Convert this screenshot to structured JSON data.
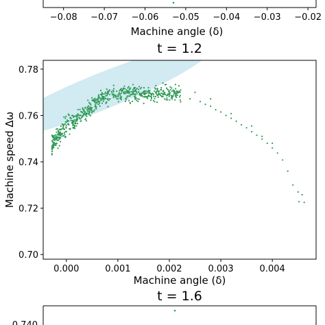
{
  "colors": {
    "scatter": "#2e9a55",
    "ellipse": "#add8e6",
    "axes": "#000000"
  },
  "chart_data": [
    {
      "type": "scatter",
      "title": "",
      "xlabel": "Machine angle (δ)",
      "ylabel": "",
      "xlim": [
        -0.085,
        -0.018
      ],
      "ticks_x": [
        "−0.08",
        "−0.07",
        "−0.06",
        "−0.05",
        "−0.04",
        "−0.03",
        "−0.02"
      ],
      "tick_values_x": [
        -0.08,
        -0.07,
        -0.06,
        -0.05,
        -0.04,
        -0.03,
        -0.02
      ],
      "visible_points": [
        {
          "x": -0.05,
          "y": null
        }
      ],
      "partial": "cropped at top; only bottom of panel visible"
    },
    {
      "type": "scatter",
      "title": "t = 1.2",
      "xlabel": "Machine angle (δ)",
      "ylabel": "Machine speed Δω",
      "xlim": [
        -0.00045,
        0.00485
      ],
      "ylim": [
        0.698,
        0.7838
      ],
      "ticks_x": [
        "0.000",
        "0.001",
        "0.002",
        "0.003",
        "0.004"
      ],
      "tick_values_x": [
        0.0,
        0.001,
        0.002,
        0.003,
        0.004
      ],
      "ticks_y": [
        "0.70",
        "0.72",
        "0.74",
        "0.76",
        "0.78"
      ],
      "tick_values_y": [
        0.7,
        0.72,
        0.74,
        0.76,
        0.78
      ],
      "grid": false,
      "confidence_ellipse": {
        "center": [
          0.0007,
          0.7705
        ],
        "semi_x": 0.0023,
        "semi_y": 0.0078,
        "angle_deg": -22
      },
      "dense_cluster": {
        "x_range": [
          -0.0003,
          0.0022
        ],
        "y_range": [
          0.743,
          0.78
        ],
        "trend": "rising then flat",
        "point_count_approx": 650
      },
      "series": [
        {
          "name": "",
          "points": [
            [
              0.0014,
              0.7845
            ],
            [
              0.002,
              0.7693
            ],
            [
              0.0022,
              0.768
            ],
            [
              0.0024,
              0.7672
            ],
            [
              0.0026,
              0.766
            ],
            [
              0.0027,
              0.7648
            ],
            [
              0.0028,
              0.764
            ],
            [
              0.0029,
              0.7625
            ],
            [
              0.003,
              0.7615
            ],
            [
              0.0031,
              0.76
            ],
            [
              0.0032,
              0.7588
            ],
            [
              0.0033,
              0.7575
            ],
            [
              0.0034,
              0.756
            ],
            [
              0.0035,
              0.7547
            ],
            [
              0.0036,
              0.753
            ],
            [
              0.0037,
              0.7515
            ],
            [
              0.0038,
              0.7498
            ],
            [
              0.0039,
              0.748
            ],
            [
              0.004,
              0.746
            ],
            [
              0.0041,
              0.7438
            ],
            [
              0.0042,
              0.7408
            ],
            [
              0.0043,
              0.736
            ],
            [
              0.0044,
              0.73
            ],
            [
              0.0045,
              0.727
            ],
            [
              0.00458,
              0.7258
            ],
            [
              0.00452,
              0.7228
            ],
            [
              0.00462,
              0.7225
            ],
            [
              0.00492,
              0.7025
            ],
            [
              0.0025,
              0.77
            ],
            [
              0.0028,
              0.7672
            ],
            [
              0.0032,
              0.7608
            ],
            [
              0.0036,
              0.7555
            ],
            [
              0.0038,
              0.751
            ],
            [
              0.004,
              0.748
            ]
          ]
        }
      ]
    },
    {
      "type": "scatter",
      "title": "t = 1.6",
      "partial": "cropped at bottom; only title and top edge visible",
      "visible_points": [
        {
          "x": 0.0014,
          "y": null
        }
      ]
    }
  ]
}
